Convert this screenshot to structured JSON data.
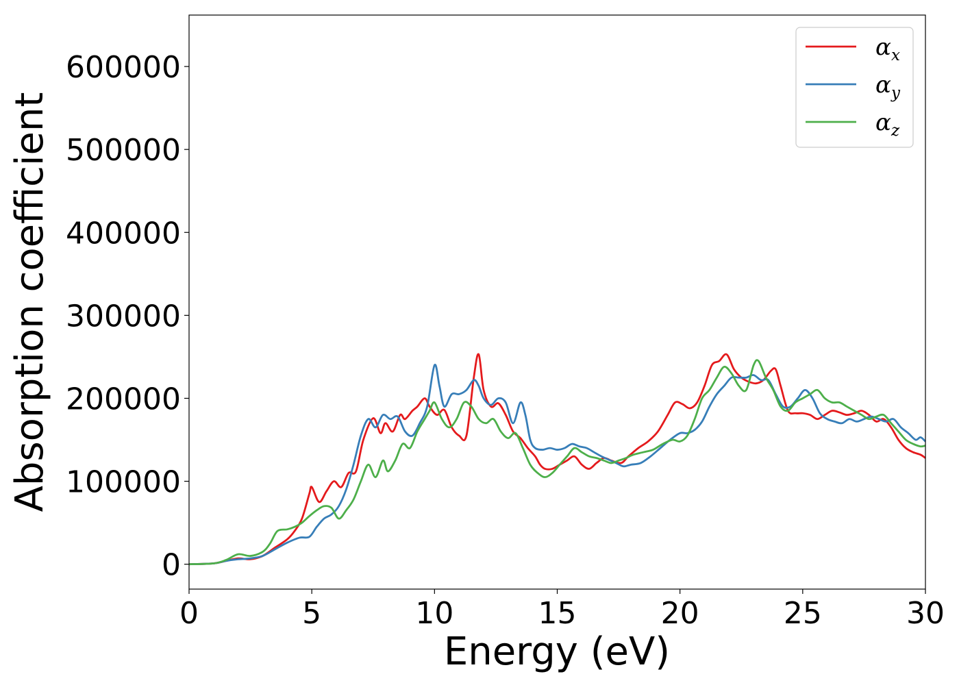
{
  "chart_data": {
    "type": "line",
    "xlabel": "Energy (eV)",
    "ylabel": "Absorption coefficient",
    "xlim": [
      0,
      30
    ],
    "ylim": [
      -30000,
      662000
    ],
    "xticks": [
      0,
      5,
      10,
      15,
      20,
      25,
      30
    ],
    "xtick_labels": [
      "0",
      "5",
      "10",
      "15",
      "20",
      "25",
      "30"
    ],
    "yticks": [
      0,
      100000,
      200000,
      300000,
      400000,
      500000,
      600000
    ],
    "ytick_labels": [
      "0",
      "100000",
      "200000",
      "300000",
      "400000",
      "500000",
      "600000"
    ],
    "grid": false,
    "legend_position": "top-right",
    "series": [
      {
        "name": "α_x",
        "symbol": "α",
        "subscript": "x",
        "color": "#e41a1c",
        "x": [
          0,
          1,
          1.5,
          2,
          2.5,
          3,
          3.5,
          4,
          4.3,
          4.6,
          4.9,
          5.0,
          5.3,
          5.6,
          5.9,
          6.2,
          6.5,
          6.8,
          7.1,
          7.5,
          7.8,
          8.0,
          8.3,
          8.6,
          8.8,
          9.1,
          9.3,
          9.6,
          9.8,
          10.1,
          10.4,
          10.7,
          11.0,
          11.3,
          11.6,
          11.8,
          12.0,
          12.3,
          12.6,
          12.9,
          13.2,
          13.5,
          13.8,
          14.1,
          14.3,
          14.5,
          14.8,
          15.1,
          15.4,
          15.7,
          16.0,
          16.3,
          16.6,
          16.9,
          17.2,
          17.6,
          17.9,
          18.3,
          18.7,
          19.1,
          19.5,
          19.8,
          20.1,
          20.4,
          20.7,
          21.0,
          21.3,
          21.6,
          21.9,
          22.2,
          22.5,
          22.8,
          23.1,
          23.4,
          23.7,
          23.9,
          24.1,
          24.4,
          24.7,
          25.0,
          25.3,
          25.6,
          25.9,
          26.2,
          26.5,
          26.8,
          27.1,
          27.4,
          27.7,
          28.0,
          28.3,
          28.6,
          28.9,
          29.2,
          29.5,
          29.8,
          30
        ],
        "y": [
          0,
          1000,
          4000,
          7000,
          6000,
          10000,
          20000,
          30000,
          40000,
          55000,
          85000,
          93000,
          75000,
          88000,
          100000,
          93000,
          110000,
          112000,
          150000,
          176000,
          158000,
          170000,
          160000,
          180000,
          175000,
          185000,
          190000,
          200000,
          190000,
          180000,
          186000,
          165000,
          155000,
          155000,
          225000,
          253000,
          210000,
          190000,
          194000,
          180000,
          160000,
          152000,
          140000,
          130000,
          120000,
          115000,
          115000,
          120000,
          125000,
          130000,
          120000,
          115000,
          122000,
          128000,
          125000,
          122000,
          130000,
          140000,
          148000,
          160000,
          180000,
          195000,
          193000,
          188000,
          195000,
          215000,
          240000,
          245000,
          253000,
          235000,
          225000,
          220000,
          218000,
          222000,
          233000,
          235000,
          215000,
          185000,
          182000,
          182000,
          180000,
          175000,
          180000,
          185000,
          183000,
          180000,
          182000,
          185000,
          180000,
          172000,
          175000,
          165000,
          150000,
          140000,
          135000,
          132000,
          128000
        ]
      },
      {
        "name": "α_y",
        "symbol": "α",
        "subscript": "y",
        "color": "#377eb8",
        "x": [
          0,
          1,
          1.5,
          2,
          2.5,
          3,
          3.5,
          4,
          4.5,
          4.9,
          5.2,
          5.5,
          5.8,
          6.1,
          6.4,
          6.7,
          7.0,
          7.3,
          7.6,
          7.9,
          8.2,
          8.5,
          8.8,
          9.1,
          9.4,
          9.7,
          10.0,
          10.2,
          10.4,
          10.7,
          11.0,
          11.3,
          11.6,
          11.8,
          12.0,
          12.3,
          12.6,
          12.9,
          13.2,
          13.5,
          13.7,
          13.9,
          14.1,
          14.4,
          14.7,
          15.0,
          15.3,
          15.6,
          15.9,
          16.2,
          16.5,
          16.8,
          17.1,
          17.4,
          17.7,
          18.0,
          18.4,
          18.8,
          19.2,
          19.6,
          20.0,
          20.3,
          20.6,
          20.9,
          21.2,
          21.5,
          21.8,
          22.1,
          22.4,
          22.7,
          23.0,
          23.3,
          23.6,
          23.9,
          24.2,
          24.5,
          24.8,
          25.1,
          25.4,
          25.7,
          26.0,
          26.3,
          26.6,
          26.9,
          27.2,
          27.5,
          27.8,
          28.1,
          28.4,
          28.7,
          29.0,
          29.3,
          29.6,
          29.8,
          30
        ],
        "y": [
          0,
          1000,
          4000,
          6000,
          7000,
          10000,
          18000,
          26000,
          32000,
          33000,
          45000,
          55000,
          60000,
          70000,
          90000,
          120000,
          155000,
          175000,
          165000,
          180000,
          175000,
          178000,
          160000,
          155000,
          170000,
          190000,
          240000,
          215000,
          190000,
          205000,
          205000,
          210000,
          222000,
          215000,
          200000,
          192000,
          200000,
          195000,
          170000,
          195000,
          180000,
          150000,
          140000,
          138000,
          140000,
          138000,
          140000,
          145000,
          142000,
          140000,
          135000,
          130000,
          126000,
          122000,
          118000,
          120000,
          122000,
          130000,
          140000,
          150000,
          158000,
          158000,
          162000,
          172000,
          190000,
          205000,
          215000,
          225000,
          225000,
          225000,
          228000,
          222000,
          222000,
          205000,
          190000,
          190000,
          200000,
          210000,
          200000,
          182000,
          175000,
          172000,
          170000,
          175000,
          172000,
          175000,
          178000,
          175000,
          172000,
          175000,
          165000,
          158000,
          150000,
          153000,
          148000
        ]
      },
      {
        "name": "α_z",
        "symbol": "α",
        "subscript": "z",
        "color": "#4daf4a",
        "x": [
          0,
          1,
          1.5,
          2,
          2.5,
          3,
          3.3,
          3.6,
          4.0,
          4.3,
          4.6,
          4.9,
          5.2,
          5.5,
          5.8,
          6.1,
          6.4,
          6.7,
          7.0,
          7.3,
          7.6,
          7.9,
          8.1,
          8.4,
          8.7,
          9.0,
          9.3,
          9.6,
          9.8,
          10.0,
          10.3,
          10.6,
          10.9,
          11.2,
          11.5,
          11.8,
          12.1,
          12.4,
          12.7,
          13.0,
          13.3,
          13.6,
          13.9,
          14.2,
          14.5,
          14.8,
          15.1,
          15.4,
          15.7,
          16.0,
          16.3,
          16.6,
          16.9,
          17.2,
          17.5,
          17.8,
          18.1,
          18.5,
          18.9,
          19.3,
          19.7,
          20.0,
          20.3,
          20.6,
          20.9,
          21.2,
          21.5,
          21.8,
          22.1,
          22.4,
          22.7,
          23.0,
          23.2,
          23.5,
          23.8,
          24.1,
          24.4,
          24.7,
          25.0,
          25.3,
          25.6,
          25.9,
          26.2,
          26.5,
          26.8,
          27.1,
          27.4,
          27.7,
          28.0,
          28.3,
          28.6,
          28.9,
          29.2,
          29.5,
          29.8,
          30
        ],
        "y": [
          0,
          1000,
          5000,
          12000,
          10000,
          15000,
          25000,
          40000,
          42000,
          45000,
          50000,
          58000,
          65000,
          70000,
          68000,
          55000,
          65000,
          78000,
          100000,
          120000,
          105000,
          125000,
          112000,
          125000,
          145000,
          140000,
          160000,
          175000,
          185000,
          195000,
          175000,
          165000,
          175000,
          195000,
          190000,
          175000,
          170000,
          175000,
          160000,
          152000,
          158000,
          140000,
          120000,
          110000,
          105000,
          110000,
          120000,
          130000,
          140000,
          135000,
          130000,
          128000,
          125000,
          122000,
          125000,
          128000,
          132000,
          135000,
          138000,
          145000,
          150000,
          148000,
          155000,
          175000,
          200000,
          210000,
          225000,
          238000,
          230000,
          215000,
          210000,
          240000,
          245000,
          225000,
          210000,
          190000,
          185000,
          195000,
          200000,
          205000,
          210000,
          200000,
          195000,
          195000,
          190000,
          185000,
          180000,
          175000,
          178000,
          180000,
          170000,
          160000,
          150000,
          145000,
          142000,
          143000
        ]
      }
    ]
  }
}
